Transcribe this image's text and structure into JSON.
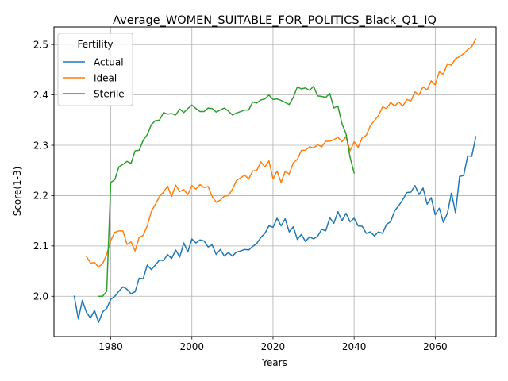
{
  "chart_data": {
    "type": "line",
    "title": "Average_WOMEN_SUITABLE_FOR_POLITICS_Black_Q1_IQ",
    "xlabel": "Years",
    "ylabel": "Score(1-3)",
    "xlim": [
      1966,
      2075
    ],
    "ylim": [
      1.92,
      2.535
    ],
    "xticks": [
      1980,
      2000,
      2020,
      2040,
      2060
    ],
    "yticks": [
      2.0,
      2.1,
      2.2,
      2.3,
      2.4,
      2.5
    ],
    "ytick_labels": [
      "2.0",
      "2.1",
      "2.2",
      "2.3",
      "2.4",
      "2.5"
    ],
    "grid": true,
    "legend": {
      "title": "Fertility",
      "position": "upper left"
    },
    "series": [
      {
        "name": "Actual",
        "color": "#1f77b4",
        "x": [
          1971,
          1972,
          1973,
          1974,
          1975,
          1976,
          1977,
          1978,
          1979,
          1980,
          1981,
          1982,
          1983,
          1984,
          1985,
          1986,
          1987,
          1988,
          1989,
          1990,
          1991,
          1992,
          1993,
          1994,
          1995,
          1996,
          1997,
          1998,
          1999,
          2000,
          2001,
          2002,
          2003,
          2004,
          2005,
          2006,
          2007,
          2008,
          2009,
          2010,
          2011,
          2012,
          2013,
          2014,
          2015,
          2016,
          2017,
          2018,
          2019,
          2020,
          2021,
          2022,
          2023,
          2024,
          2025,
          2026,
          2027,
          2028,
          2029,
          2030,
          2031,
          2032,
          2033,
          2034,
          2035,
          2036,
          2037,
          2038,
          2039,
          2040,
          2041,
          2042,
          2043,
          2044,
          2045,
          2046,
          2047,
          2048,
          2049,
          2050,
          2051,
          2052,
          2053,
          2054,
          2055,
          2056,
          2057,
          2058,
          2059,
          2060,
          2061,
          2062,
          2063,
          2064,
          2065,
          2066,
          2067,
          2068,
          2069,
          2070
        ],
        "y": [
          2.0,
          1.955,
          1.992,
          1.968,
          1.957,
          1.972,
          1.948,
          1.969,
          1.976,
          1.994,
          2.0,
          2.01,
          2.019,
          2.014,
          2.005,
          2.009,
          2.036,
          2.035,
          2.062,
          2.053,
          2.062,
          2.072,
          2.071,
          2.083,
          2.075,
          2.092,
          2.078,
          2.106,
          2.088,
          2.114,
          2.106,
          2.112,
          2.11,
          2.098,
          2.102,
          2.083,
          2.093,
          2.08,
          2.087,
          2.08,
          2.088,
          2.09,
          2.093,
          2.092,
          2.099,
          2.105,
          2.117,
          2.125,
          2.14,
          2.137,
          2.155,
          2.14,
          2.154,
          2.128,
          2.138,
          2.113,
          2.123,
          2.109,
          2.118,
          2.114,
          2.119,
          2.133,
          2.13,
          2.156,
          2.145,
          2.168,
          2.15,
          2.165,
          2.148,
          2.155,
          2.14,
          2.139,
          2.125,
          2.128,
          2.12,
          2.128,
          2.125,
          2.143,
          2.148,
          2.17,
          2.18,
          2.192,
          2.206,
          2.207,
          2.22,
          2.202,
          2.215,
          2.183,
          2.196,
          2.162,
          2.175,
          2.147,
          2.165,
          2.205,
          2.166,
          2.238,
          2.24,
          2.279,
          2.278,
          2.317
        ]
      },
      {
        "name": "Ideal",
        "color": "#ff7f0e",
        "x": [
          1974,
          1975,
          1976,
          1977,
          1978,
          1979,
          1980,
          1981,
          1982,
          1983,
          1984,
          1985,
          1986,
          1987,
          1988,
          1989,
          1990,
          1991,
          1992,
          1993,
          1994,
          1995,
          1996,
          1997,
          1998,
          1999,
          2000,
          2001,
          2002,
          2003,
          2004,
          2005,
          2006,
          2007,
          2008,
          2009,
          2010,
          2011,
          2012,
          2013,
          2014,
          2015,
          2016,
          2017,
          2018,
          2019,
          2020,
          2021,
          2022,
          2023,
          2024,
          2025,
          2026,
          2027,
          2028,
          2029,
          2030,
          2031,
          2032,
          2033,
          2034,
          2035,
          2036,
          2037,
          2038,
          2039,
          2040,
          2041,
          2042,
          2043,
          2044,
          2045,
          2046,
          2047,
          2048,
          2049,
          2050,
          2051,
          2052,
          2053,
          2054,
          2055,
          2056,
          2057,
          2058,
          2059,
          2060,
          2061,
          2062,
          2063,
          2064,
          2065,
          2066,
          2067,
          2068,
          2069,
          2070
        ],
        "y": [
          2.079,
          2.066,
          2.067,
          2.058,
          2.065,
          2.083,
          2.111,
          2.127,
          2.13,
          2.13,
          2.103,
          2.108,
          2.09,
          2.117,
          2.121,
          2.14,
          2.168,
          2.183,
          2.198,
          2.207,
          2.219,
          2.198,
          2.221,
          2.208,
          2.212,
          2.202,
          2.22,
          2.213,
          2.222,
          2.216,
          2.218,
          2.198,
          2.187,
          2.191,
          2.199,
          2.2,
          2.213,
          2.23,
          2.235,
          2.241,
          2.233,
          2.249,
          2.25,
          2.267,
          2.257,
          2.269,
          2.233,
          2.249,
          2.226,
          2.248,
          2.243,
          2.265,
          2.272,
          2.29,
          2.29,
          2.297,
          2.295,
          2.301,
          2.297,
          2.308,
          2.308,
          2.311,
          2.316,
          2.307,
          2.317,
          2.289,
          2.307,
          2.296,
          2.315,
          2.32,
          2.339,
          2.349,
          2.359,
          2.376,
          2.373,
          2.385,
          2.378,
          2.386,
          2.378,
          2.391,
          2.388,
          2.406,
          2.4,
          2.416,
          2.41,
          2.428,
          2.42,
          2.446,
          2.441,
          2.462,
          2.459,
          2.472,
          2.476,
          2.482,
          2.49,
          2.496,
          2.511
        ]
      },
      {
        "name": "Sterile",
        "color": "#2ca02c",
        "x": [
          1977,
          1978,
          1979,
          1980,
          1981,
          1982,
          1983,
          1984,
          1985,
          1986,
          1987,
          1988,
          1989,
          1990,
          1991,
          1992,
          1993,
          1994,
          1995,
          1996,
          1997,
          1998,
          1999,
          2000,
          2001,
          2002,
          2003,
          2004,
          2005,
          2006,
          2007,
          2008,
          2009,
          2010,
          2011,
          2012,
          2013,
          2014,
          2015,
          2016,
          2017,
          2018,
          2019,
          2020,
          2021,
          2022,
          2023,
          2024,
          2025,
          2026,
          2027,
          2028,
          2029,
          2030,
          2031,
          2032,
          2033,
          2034,
          2035,
          2036,
          2037,
          2038,
          2039,
          2040
        ],
        "y": [
          2.0,
          2.0,
          2.01,
          2.226,
          2.232,
          2.257,
          2.262,
          2.268,
          2.264,
          2.289,
          2.29,
          2.31,
          2.321,
          2.341,
          2.349,
          2.35,
          2.365,
          2.362,
          2.363,
          2.36,
          2.372,
          2.365,
          2.373,
          2.38,
          2.373,
          2.367,
          2.367,
          2.374,
          2.373,
          2.366,
          2.37,
          2.374,
          2.368,
          2.36,
          2.364,
          2.367,
          2.37,
          2.37,
          2.386,
          2.384,
          2.39,
          2.392,
          2.4,
          2.391,
          2.392,
          2.389,
          2.385,
          2.381,
          2.395,
          2.416,
          2.412,
          2.414,
          2.409,
          2.417,
          2.398,
          2.397,
          2.395,
          2.403,
          2.374,
          2.378,
          2.343,
          2.323,
          2.276,
          2.245
        ]
      }
    ]
  }
}
